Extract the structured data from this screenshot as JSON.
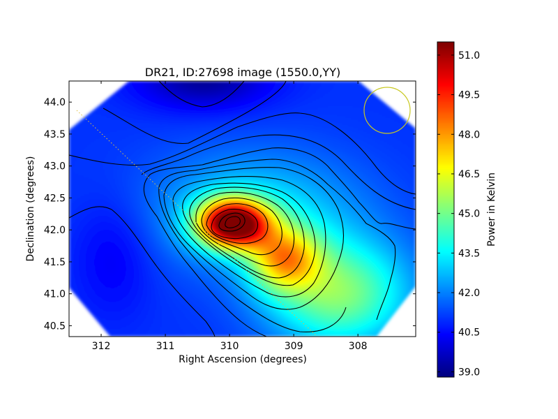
{
  "chart_data": {
    "type": "heatmap",
    "title": "DR21, ID:27698 image (1550.0,YY)",
    "xlabel": "Right Ascension (degrees)",
    "ylabel": "Declination (degrees)",
    "xlim": [
      312.5,
      307.1
    ],
    "ylim": [
      40.33,
      44.33
    ],
    "x_ticks": [
      "312",
      "311",
      "310",
      "309",
      "308"
    ],
    "x_tick_values": [
      312,
      311,
      310,
      309,
      308
    ],
    "y_ticks": [
      "40.5",
      "41.0",
      "41.5",
      "42.0",
      "42.5",
      "43.0",
      "43.5",
      "44.0"
    ],
    "y_tick_values": [
      40.5,
      41.0,
      41.5,
      42.0,
      42.5,
      43.0,
      43.5,
      44.0
    ],
    "colorbar": {
      "label": "Power in Kelvin",
      "range": [
        38.8,
        51.5
      ],
      "ticks": [
        "39.0",
        "40.5",
        "42.0",
        "43.5",
        "45.0",
        "46.5",
        "48.0",
        "49.5",
        "51.0"
      ],
      "tick_values": [
        39.0,
        40.5,
        42.0,
        43.5,
        45.0,
        46.5,
        48.0,
        49.5,
        51.0
      ],
      "colormap": "jet"
    },
    "peak": {
      "ra": 309.95,
      "dec": 42.1,
      "value": 51.4
    },
    "minimum": {
      "ra": 310.4,
      "dec": 44.2,
      "value": 38.9
    },
    "beam_circle": {
      "ra": 307.5,
      "dec": 43.88,
      "color": "#c8c820"
    },
    "contours": "on",
    "grid": "off"
  }
}
